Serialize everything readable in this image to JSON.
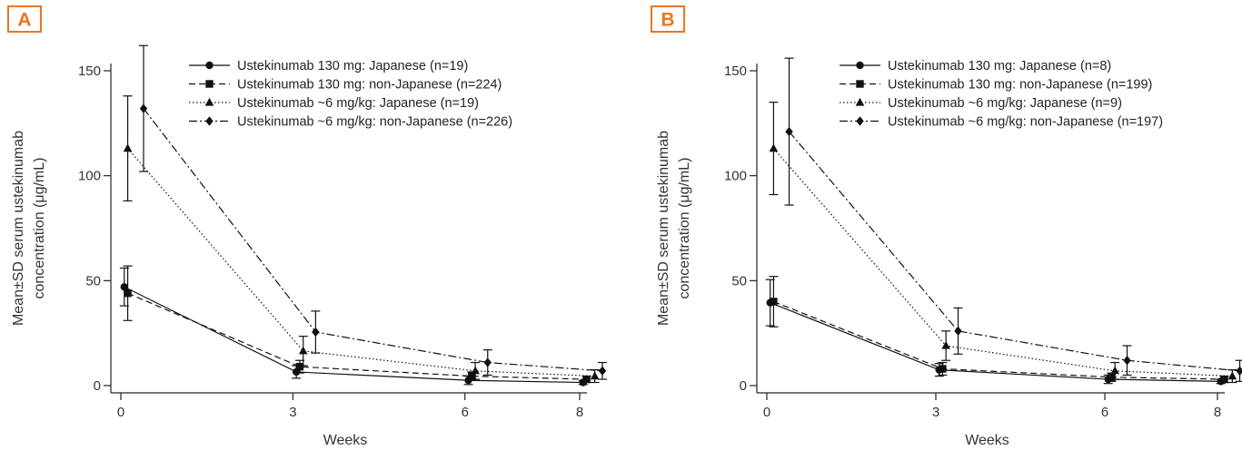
{
  "chart_data": [
    {
      "type": "line",
      "panel_label": "A",
      "xlabel": "Weeks",
      "ylabel_lines": [
        "Mean±SD serum ustekinumab",
        "concentration (μg/mL)"
      ],
      "x_ticks": [
        "0",
        "3",
        "6",
        "8"
      ],
      "y_ticks": [
        "0",
        "50",
        "100",
        "150"
      ],
      "xlim": [
        0,
        8
      ],
      "ylim": [
        0,
        150
      ],
      "legend_position": "top-right",
      "series": [
        {
          "name": "Ustekinumab 130 mg: Japanese (n=19)",
          "marker": "circle",
          "dash": "solid",
          "x": [
            0,
            3,
            6,
            8
          ],
          "y": [
            47,
            6.5,
            2.5,
            1.5
          ],
          "err": [
            9,
            3,
            2,
            1
          ]
        },
        {
          "name": "Ustekinumab 130 mg: non-Japanese (n=224)",
          "marker": "square",
          "dash": "dashed",
          "x": [
            0,
            3,
            6,
            8
          ],
          "y": [
            44,
            9,
            4.5,
            3
          ],
          "err": [
            13,
            3,
            2,
            1.5
          ]
        },
        {
          "name": "Ustekinumab ~6 mg/kg: Japanese (n=19)",
          "marker": "triangle",
          "dash": "dotted",
          "x": [
            0,
            3,
            6,
            8
          ],
          "y": [
            113,
            16.5,
            7,
            4.5
          ],
          "err": [
            25,
            7,
            4,
            3
          ]
        },
        {
          "name": "Ustekinumab ~6 mg/kg: non-Japanese (n=226)",
          "marker": "diamond",
          "dash": "dashdot",
          "x": [
            0,
            3,
            6,
            8
          ],
          "y": [
            132,
            25.5,
            11,
            7
          ],
          "err": [
            30,
            10,
            6,
            4
          ]
        }
      ]
    },
    {
      "type": "line",
      "panel_label": "B",
      "xlabel": "Weeks",
      "ylabel_lines": [
        "Mean±SD serum ustekinumab",
        "concentration (μg/mL)"
      ],
      "x_ticks": [
        "0",
        "3",
        "6",
        "8"
      ],
      "y_ticks": [
        "0",
        "50",
        "100",
        "150"
      ],
      "xlim": [
        0,
        8
      ],
      "ylim": [
        0,
        150
      ],
      "legend_position": "top-right",
      "series": [
        {
          "name": "Ustekinumab 130 mg: Japanese (n=8)",
          "marker": "circle",
          "dash": "solid",
          "x": [
            0,
            3,
            6,
            8
          ],
          "y": [
            39.5,
            7.5,
            3,
            2
          ],
          "err": [
            11,
            3,
            2,
            1
          ]
        },
        {
          "name": "Ustekinumab 130 mg: non-Japanese (n=199)",
          "marker": "square",
          "dash": "dashed",
          "x": [
            0,
            3,
            6,
            8
          ],
          "y": [
            40,
            8,
            4,
            3
          ],
          "err": [
            12,
            3,
            2,
            1.5
          ]
        },
        {
          "name": "Ustekinumab ~6 mg/kg: Japanese (n=9)",
          "marker": "triangle",
          "dash": "dotted",
          "x": [
            0,
            3,
            6,
            8
          ],
          "y": [
            113,
            19,
            7,
            4.5
          ],
          "err": [
            22,
            7,
            4,
            3
          ]
        },
        {
          "name": "Ustekinumab ~6 mg/kg: non-Japanese (n=197)",
          "marker": "diamond",
          "dash": "dashdot",
          "x": [
            0,
            3,
            6,
            8
          ],
          "y": [
            121,
            26,
            12,
            7
          ],
          "err": [
            35,
            11,
            7,
            5
          ]
        }
      ]
    }
  ]
}
